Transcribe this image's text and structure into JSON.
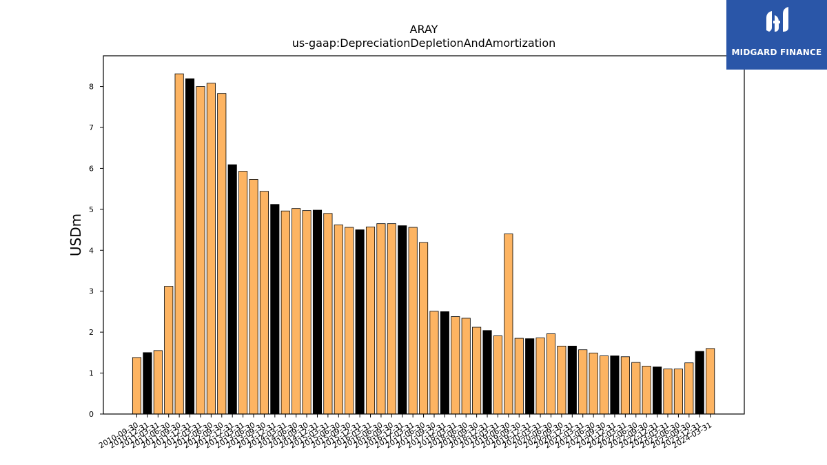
{
  "logo": {
    "text": "MIDGARD FINANCE"
  },
  "colors": {
    "bar_default": "#fdb462",
    "bar_highlight": "#000000",
    "logo_bg": "#2a56a8"
  },
  "chart_data": {
    "type": "bar",
    "title": "ARAY",
    "subtitle": "us-gaap:DepreciationDepletionAndAmortization",
    "xlabel": "",
    "ylabel": "USDm",
    "ylim": [
      0,
      8.75
    ],
    "yticks": [
      0,
      1,
      2,
      3,
      4,
      5,
      6,
      7,
      8
    ],
    "grid": false,
    "categories": [
      "2010-09-30",
      "2010-12-31",
      "2011-03-31",
      "2011-06-30",
      "2011-09-30",
      "2011-12-31",
      "2012-03-31",
      "2012-06-30",
      "2012-09-30",
      "2012-12-31",
      "2013-03-31",
      "2013-06-30",
      "2013-09-30",
      "2013-12-31",
      "2014-03-31",
      "2014-06-30",
      "2014-09-30",
      "2014-12-31",
      "2015-03-31",
      "2015-06-30",
      "2015-09-30",
      "2015-12-31",
      "2016-03-31",
      "2016-06-30",
      "2016-09-30",
      "2016-12-31",
      "2017-03-31",
      "2017-06-30",
      "2017-09-30",
      "2017-12-31",
      "2018-03-31",
      "2018-06-30",
      "2018-09-30",
      "2018-12-31",
      "2019-03-31",
      "2019-06-30",
      "2019-09-30",
      "2019-12-31",
      "2020-03-31",
      "2020-06-30",
      "2020-09-30",
      "2020-12-31",
      "2021-03-31",
      "2021-06-30",
      "2021-09-30",
      "2021-12-31",
      "2022-03-31",
      "2022-06-30",
      "2022-09-30",
      "2022-12-31",
      "2023-03-31",
      "2023-06-30",
      "2023-09-30",
      "2023-12-31",
      "2024-03-31"
    ],
    "values": [
      1.38,
      1.5,
      1.55,
      3.12,
      8.31,
      8.19,
      8.0,
      8.08,
      7.83,
      6.09,
      5.93,
      5.73,
      5.44,
      5.12,
      4.96,
      5.02,
      4.97,
      4.98,
      4.9,
      4.62,
      4.56,
      4.5,
      4.57,
      4.65,
      4.65,
      4.6,
      4.56,
      4.19,
      2.51,
      2.5,
      2.38,
      2.34,
      2.12,
      2.04,
      1.91,
      4.4,
      1.85,
      1.84,
      1.86,
      1.96,
      1.66,
      1.66,
      1.57,
      1.49,
      1.42,
      1.42,
      1.4,
      1.26,
      1.17,
      1.15,
      1.1,
      1.1,
      1.25,
      1.53,
      1.6
    ],
    "highlight": [
      false,
      true,
      false,
      false,
      false,
      true,
      false,
      false,
      false,
      true,
      false,
      false,
      false,
      true,
      false,
      false,
      false,
      true,
      false,
      false,
      false,
      true,
      false,
      false,
      false,
      true,
      false,
      false,
      false,
      true,
      false,
      false,
      false,
      true,
      false,
      false,
      false,
      true,
      false,
      false,
      false,
      true,
      false,
      false,
      false,
      true,
      false,
      false,
      false,
      true,
      false,
      false,
      false,
      true,
      false
    ]
  }
}
